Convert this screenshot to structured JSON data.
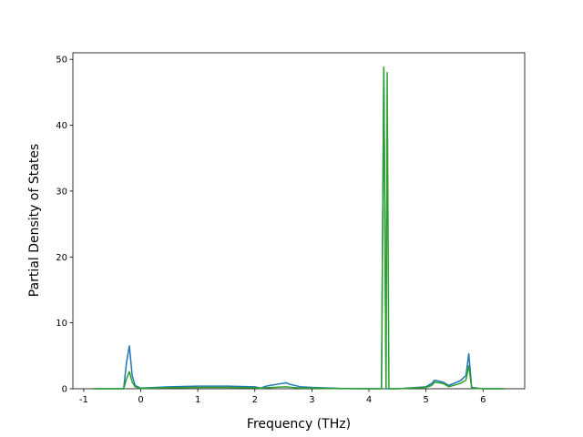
{
  "chart_data": {
    "type": "line",
    "x_label": "Frequency (THz)",
    "y_label": "Partial Density of States",
    "x": [
      -0.83,
      -0.3,
      -0.25,
      -0.2,
      -0.15,
      -0.1,
      0,
      0.5,
      1,
      1.5,
      2,
      2.1,
      2.2,
      2.4,
      2.55,
      2.6,
      2.8,
      3,
      3.5,
      4,
      4.22,
      4.26,
      4.3,
      4.32,
      4.35,
      4.5,
      5,
      5.1,
      5.15,
      5.3,
      5.4,
      5.6,
      5.7,
      5.75,
      5.8,
      6,
      6.37
    ],
    "series": [
      {
        "color": "#1f77b4",
        "values": [
          0,
          0,
          4,
          6.5,
          2,
          0.5,
          0.1,
          0.3,
          0.4,
          0.4,
          0.3,
          0.1,
          0.4,
          0.7,
          0.9,
          0.7,
          0.3,
          0.2,
          0.05,
          0,
          0,
          48.8,
          0,
          0,
          0,
          0,
          0.3,
          0.8,
          1.3,
          1.0,
          0.5,
          1.2,
          2,
          5.3,
          0.2,
          0,
          0
        ]
      },
      {
        "color": "#2ca02c",
        "values": [
          0,
          0,
          1.5,
          2.6,
          1,
          0.3,
          0.05,
          0.15,
          0.2,
          0.2,
          0.15,
          0.05,
          0.15,
          0.25,
          0.3,
          0.25,
          0.1,
          0.1,
          0.02,
          0,
          0,
          48.8,
          0,
          48,
          0,
          0,
          0.2,
          0.5,
          1.0,
          0.8,
          0.3,
          0.8,
          1.3,
          3.5,
          0.1,
          0,
          0
        ]
      }
    ],
    "xlim": [
      -1.19,
      6.73
    ],
    "ylim": [
      0,
      51
    ],
    "xticks": [
      -1,
      0,
      1,
      2,
      3,
      4,
      5,
      6
    ],
    "yticks": [
      0,
      10,
      20,
      30,
      40,
      50
    ]
  }
}
